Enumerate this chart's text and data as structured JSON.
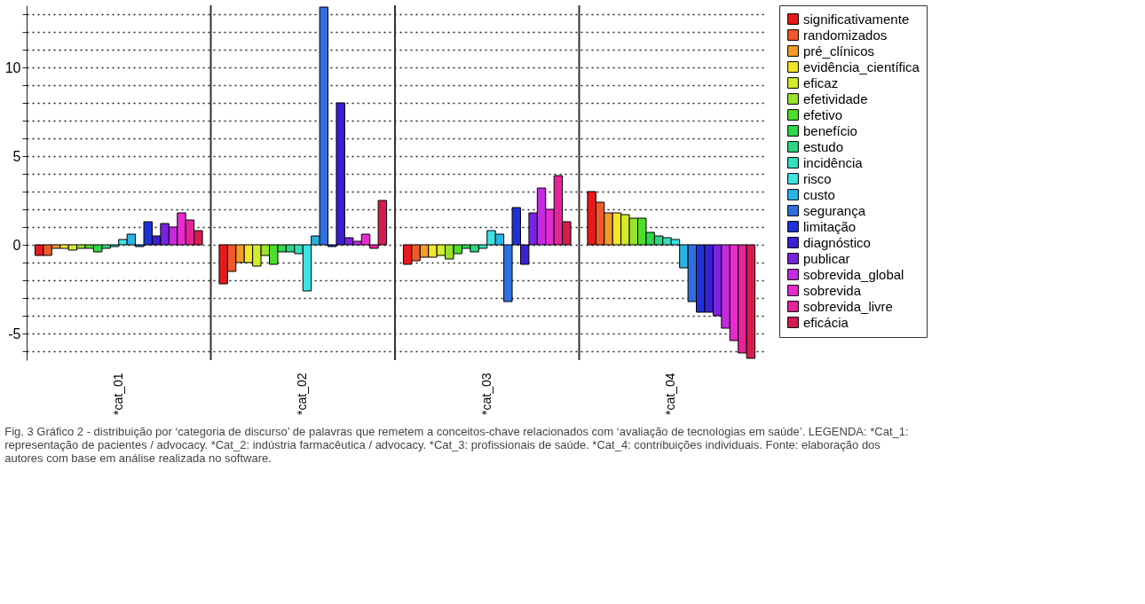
{
  "chart_data": {
    "type": "bar",
    "categories": [
      "*cat_01",
      "*cat_02",
      "*cat_03",
      "*cat_04"
    ],
    "series": [
      {
        "name": "significativamente",
        "color": "#e8191c",
        "values": [
          -0.6,
          -2.2,
          -1.1,
          3.0
        ]
      },
      {
        "name": "randomizados",
        "color": "#f0592a",
        "values": [
          -0.6,
          -1.5,
          -0.9,
          2.4
        ]
      },
      {
        "name": "pré_clínicos",
        "color": "#f49a2c",
        "values": [
          -0.2,
          -1.0,
          -0.7,
          1.8
        ]
      },
      {
        "name": "evidência_científica",
        "color": "#f5e52a",
        "values": [
          -0.2,
          -1.0,
          -0.7,
          1.8
        ]
      },
      {
        "name": "eficaz",
        "color": "#d2ec2c",
        "values": [
          -0.3,
          -1.2,
          -0.6,
          1.7
        ]
      },
      {
        "name": "efetividade",
        "color": "#9be22d",
        "values": [
          -0.2,
          -0.6,
          -0.8,
          1.5
        ]
      },
      {
        "name": "efetivo",
        "color": "#4cde2a",
        "values": [
          -0.2,
          -1.1,
          -0.5,
          1.5
        ]
      },
      {
        "name": "benefício",
        "color": "#2ed94a",
        "values": [
          -0.4,
          -0.4,
          -0.2,
          0.7
        ]
      },
      {
        "name": "estudo",
        "color": "#2ed782",
        "values": [
          -0.2,
          -0.4,
          -0.4,
          0.5
        ]
      },
      {
        "name": "incidência",
        "color": "#33e0c2",
        "values": [
          -0.1,
          -0.5,
          -0.2,
          0.4
        ]
      },
      {
        "name": "risco",
        "color": "#3ee3e6",
        "values": [
          0.3,
          -2.6,
          0.8,
          0.3
        ]
      },
      {
        "name": "custo",
        "color": "#2ab3e6",
        "values": [
          0.6,
          0.5,
          0.6,
          -1.3
        ]
      },
      {
        "name": "segurança",
        "color": "#2f6fe0",
        "values": [
          -0.1,
          13.4,
          -3.2,
          -3.2
        ]
      },
      {
        "name": "limitação",
        "color": "#1f32d8",
        "values": [
          1.3,
          -0.1,
          2.1,
          -3.8
        ]
      },
      {
        "name": "diagnóstico",
        "color": "#3a1fd4",
        "values": [
          0.5,
          8.0,
          -1.1,
          -3.8
        ]
      },
      {
        "name": "publicar",
        "color": "#7a22e0",
        "values": [
          1.2,
          0.4,
          1.8,
          -4.0
        ]
      },
      {
        "name": "sobrevida_global",
        "color": "#c42ae0",
        "values": [
          1.0,
          0.2,
          3.2,
          -4.7
        ]
      },
      {
        "name": "sobrevida",
        "color": "#e92ad0",
        "values": [
          1.8,
          0.6,
          2.0,
          -5.4
        ]
      },
      {
        "name": "sobrevida_livre",
        "color": "#e6249a",
        "values": [
          1.4,
          -0.2,
          3.9,
          -6.1
        ]
      },
      {
        "name": "eficácia",
        "color": "#d61c4f",
        "values": [
          0.8,
          2.5,
          1.3,
          -6.4
        ]
      }
    ],
    "ylim": [
      -6.5,
      13.5
    ],
    "yticks": [
      {
        "value": -6,
        "label": null
      },
      -5,
      {
        "value": -4,
        "label": null
      },
      {
        "value": -3,
        "label": null
      },
      {
        "value": -2,
        "label": null
      },
      {
        "value": -1,
        "label": null
      },
      0,
      {
        "value": 1,
        "label": null
      },
      {
        "value": 2,
        "label": null
      },
      {
        "value": 3,
        "label": null
      },
      {
        "value": 4,
        "label": null
      },
      5,
      {
        "value": 6,
        "label": null
      },
      {
        "value": 7,
        "label": null
      },
      {
        "value": 8,
        "label": null
      },
      {
        "value": 9,
        "label": null
      },
      10,
      {
        "value": 11,
        "label": null
      },
      {
        "value": 12,
        "label": null
      },
      {
        "value": 13,
        "label": null
      }
    ],
    "grid": "y",
    "legend": "right",
    "annotations": [
      "Fig. 3 Gráfico 2 - distribuição por ‘categoria de discurso’ de palavras que remetem a conceitos-chave relacionados com ‘avaliação de tecnologias em saúde’. LEGENDA: *Cat_1: representação de pacientes / advocacy. *Cat_2: indústria farmacêutica / advocacy. *Cat_3: profissionais de saúde. *Cat_4: contribuições individuais. Fonte: elaboração dos autores com base em análise realizada no software."
    ]
  }
}
